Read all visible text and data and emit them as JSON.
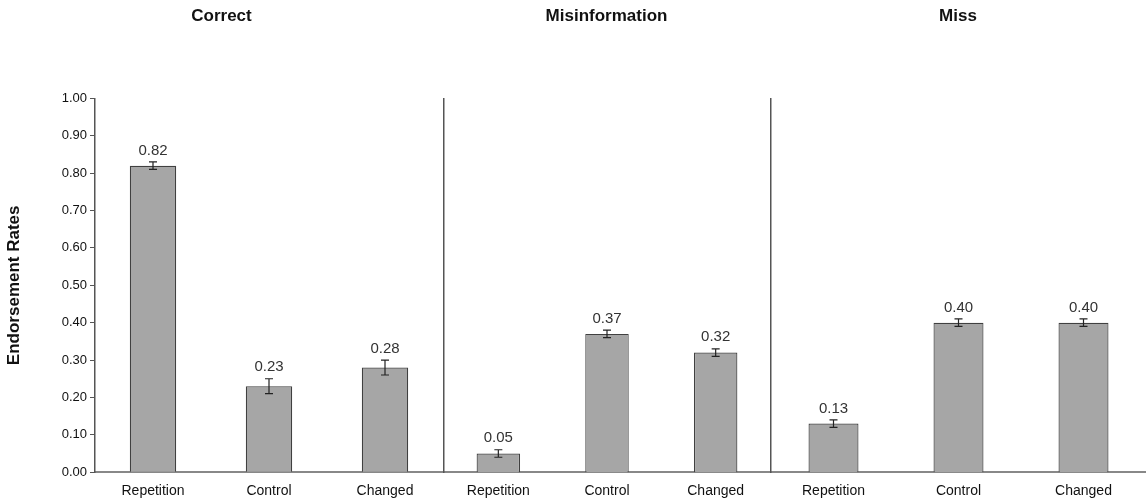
{
  "chart_data": [
    {
      "type": "bar",
      "title": "Correct",
      "ylabel": "Endorsement Rates",
      "categories": [
        "Repetition",
        "Control",
        "Changed"
      ],
      "values": [
        0.82,
        0.23,
        0.28
      ],
      "errors": [
        0.01,
        0.02,
        0.02
      ],
      "value_labels": [
        "0.82",
        "0.23",
        "0.28"
      ],
      "color": "#a6a6a6",
      "ylim": [
        0,
        1
      ],
      "yticks": [
        {
          "value": 0,
          "label": "0.00"
        },
        {
          "value": 0.1,
          "label": "0.10"
        },
        {
          "value": 0.2,
          "label": "0.20"
        },
        {
          "value": 0.3,
          "label": "0.30"
        },
        {
          "value": 0.4,
          "label": "0.40"
        },
        {
          "value": 0.5,
          "label": "0.50"
        },
        {
          "value": 0.6,
          "label": "0.60"
        },
        {
          "value": 0.7,
          "label": "0.70"
        },
        {
          "value": 0.8,
          "label": "0.80"
        },
        {
          "value": 0.9,
          "label": "0.90"
        },
        {
          "value": 1,
          "label": "1.00"
        }
      ]
    },
    {
      "type": "bar",
      "title": "Misinformation",
      "categories": [
        "Repetition",
        "Control",
        "Changed"
      ],
      "values": [
        0.05,
        0.37,
        0.32
      ],
      "errors": [
        0.01,
        0.01,
        0.01
      ],
      "value_labels": [
        "0.05",
        "0.37",
        "0.32"
      ],
      "color": "#a6a6a6",
      "ylim": [
        0,
        1
      ],
      "tick_labels": "x"
    },
    {
      "type": "bar",
      "title": "Miss",
      "categories": [
        "Repetition",
        "Control",
        "Changed"
      ],
      "values": [
        0.13,
        0.4,
        0.4
      ],
      "errors": [
        0.01,
        0.01,
        0.01
      ],
      "value_labels": [
        "0.13",
        "0.40",
        "0.40"
      ],
      "color": "#a6a6a6",
      "ylim": [
        0,
        1
      ],
      "tick_labels": "x"
    }
  ]
}
